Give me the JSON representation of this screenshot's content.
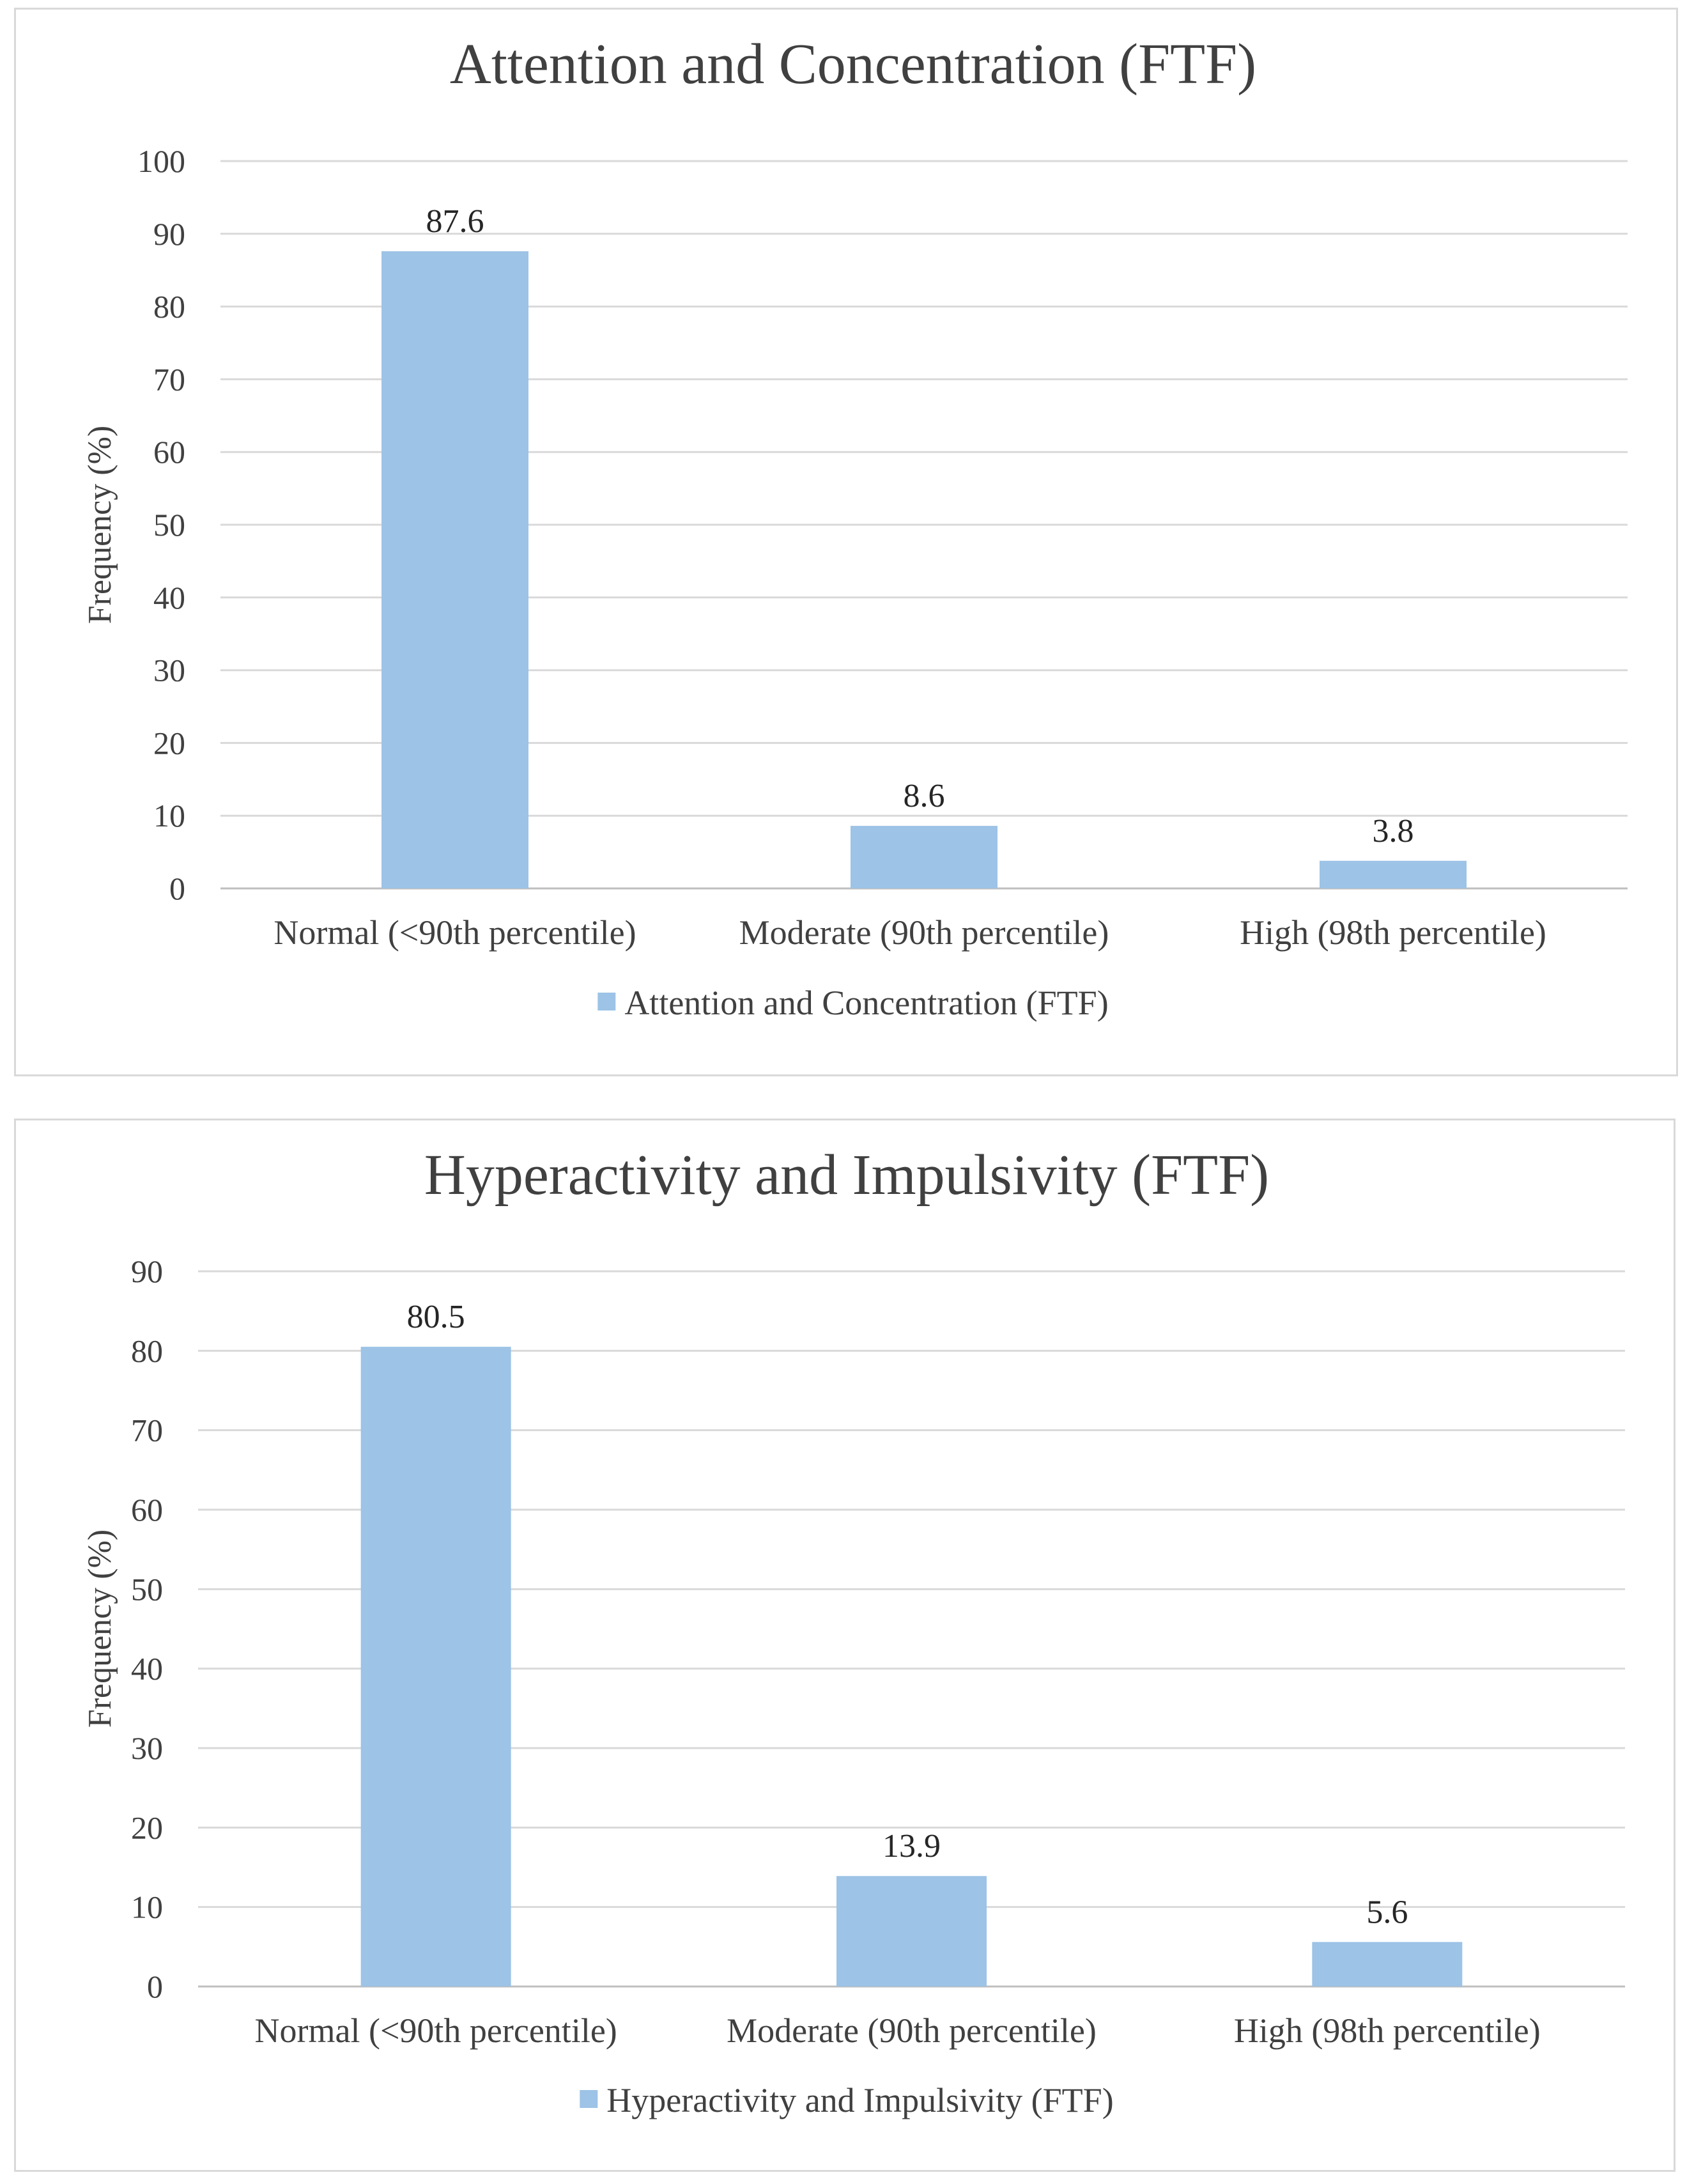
{
  "chart_data": [
    {
      "type": "bar",
      "title": "Attention and Concentration (FTF)",
      "categories": [
        "Normal (<90th percentile)",
        "Moderate (90th percentile)",
        "High (98th percentile)"
      ],
      "series": [
        {
          "name": "Attention and Concentration (FTF)",
          "values": [
            87.6,
            8.6,
            3.8
          ],
          "color": "#9dc3e6"
        }
      ],
      "data_labels": [
        "87.6",
        "8.6",
        "3.8"
      ],
      "xlabel": "",
      "ylabel": "Frequency (%)",
      "ylim": [
        0,
        100
      ],
      "yticks": [
        0,
        10,
        20,
        30,
        40,
        50,
        60,
        70,
        80,
        90,
        100
      ],
      "grid": true,
      "legend": "bottom"
    },
    {
      "type": "bar",
      "title": "Hyperactivity and Impulsivity (FTF)",
      "categories": [
        "Normal (<90th percentile)",
        "Moderate (90th percentile)",
        "High (98th percentile)"
      ],
      "series": [
        {
          "name": "Hyperactivity and Impulsivity (FTF)",
          "values": [
            80.5,
            13.9,
            5.6
          ],
          "color": "#9dc3e6"
        }
      ],
      "data_labels": [
        "80.5",
        "13.9",
        "5.6"
      ],
      "xlabel": "",
      "ylabel": "Frequency (%)",
      "ylim": [
        0,
        90
      ],
      "yticks": [
        0,
        10,
        20,
        30,
        40,
        50,
        60,
        70,
        80,
        90
      ],
      "grid": true,
      "legend": "bottom"
    }
  ]
}
